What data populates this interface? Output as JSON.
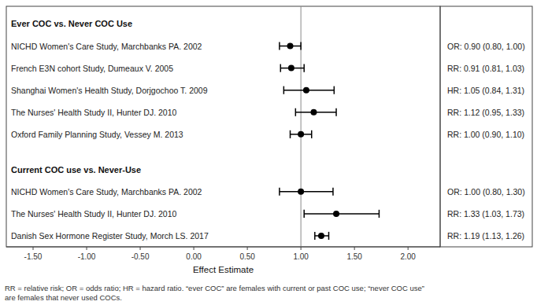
{
  "chart_data": {
    "type": "forest",
    "xlabel": "Effect Estimate",
    "footnote": "RR = relative risk; OR = odds ratio; HR = hazard ratio. “ever COC” are females with current or past COC use; “never COC use”\nare females that never used COCs.",
    "xlim": [
      -1.75,
      2.3
    ],
    "xticks": [
      {
        "value": -1.5,
        "label": "-1.50"
      },
      {
        "value": -1.0,
        "label": "-1.00"
      },
      {
        "value": -0.5,
        "label": "-0.50"
      },
      {
        "value": 0.0,
        "label": "0.00"
      },
      {
        "value": 0.5,
        "label": "0.50"
      },
      {
        "value": 1.0,
        "label": "1.00"
      },
      {
        "value": 1.5,
        "label": "1.50"
      },
      {
        "value": 2.0,
        "label": "2.00"
      }
    ],
    "reference_line": 1.0,
    "color": "black",
    "groups": [
      {
        "label": "Ever COC vs. Never COC Use",
        "studies": [
          {
            "name": "NICHD Women's Care Study, Marchbanks PA. 2002",
            "estimate": 0.9,
            "ci_low": 0.8,
            "ci_high": 1.0,
            "ci_label": "OR: 0.90 (0.80, 1.00)"
          },
          {
            "name": "French E3N cohort Study, Dumeaux V. 2005",
            "estimate": 0.91,
            "ci_low": 0.81,
            "ci_high": 1.03,
            "ci_label": "RR: 0.91 (0.81, 1.03)"
          },
          {
            "name": "Shanghai Women's Health Study, Dorjgochoo T. 2009",
            "estimate": 1.05,
            "ci_low": 0.84,
            "ci_high": 1.31,
            "ci_label": "HR: 1.05 (0.84, 1.31)"
          },
          {
            "name": "The Nurses' Health Study II, Hunter DJ. 2010",
            "estimate": 1.12,
            "ci_low": 0.95,
            "ci_high": 1.33,
            "ci_label": "RR: 1.12 (0.95, 1.33)"
          },
          {
            "name": "Oxford Family Planning Study, Vessey M. 2013",
            "estimate": 1.0,
            "ci_low": 0.9,
            "ci_high": 1.1,
            "ci_label": "RR: 1.00 (0.90, 1.10)"
          }
        ]
      },
      {
        "label": "Current COC use vs. Never-Use",
        "studies": [
          {
            "name": "NICHD Women's Care Study, Marchbanks PA. 2002",
            "estimate": 1.0,
            "ci_low": 0.8,
            "ci_high": 1.3,
            "ci_label": "OR: 1.00 (0.80, 1.30)"
          },
          {
            "name": "The Nurses' Health Study II, Hunter DJ. 2010",
            "estimate": 1.33,
            "ci_low": 1.03,
            "ci_high": 1.73,
            "ci_label": "RR: 1.33 (1.03, 1.73)"
          },
          {
            "name": "Danish Sex Hormone Register Study, Morch LS. 2017",
            "estimate": 1.19,
            "ci_low": 1.13,
            "ci_high": 1.26,
            "ci_label": "RR: 1.19 (1.13, 1.26)"
          }
        ]
      }
    ]
  }
}
